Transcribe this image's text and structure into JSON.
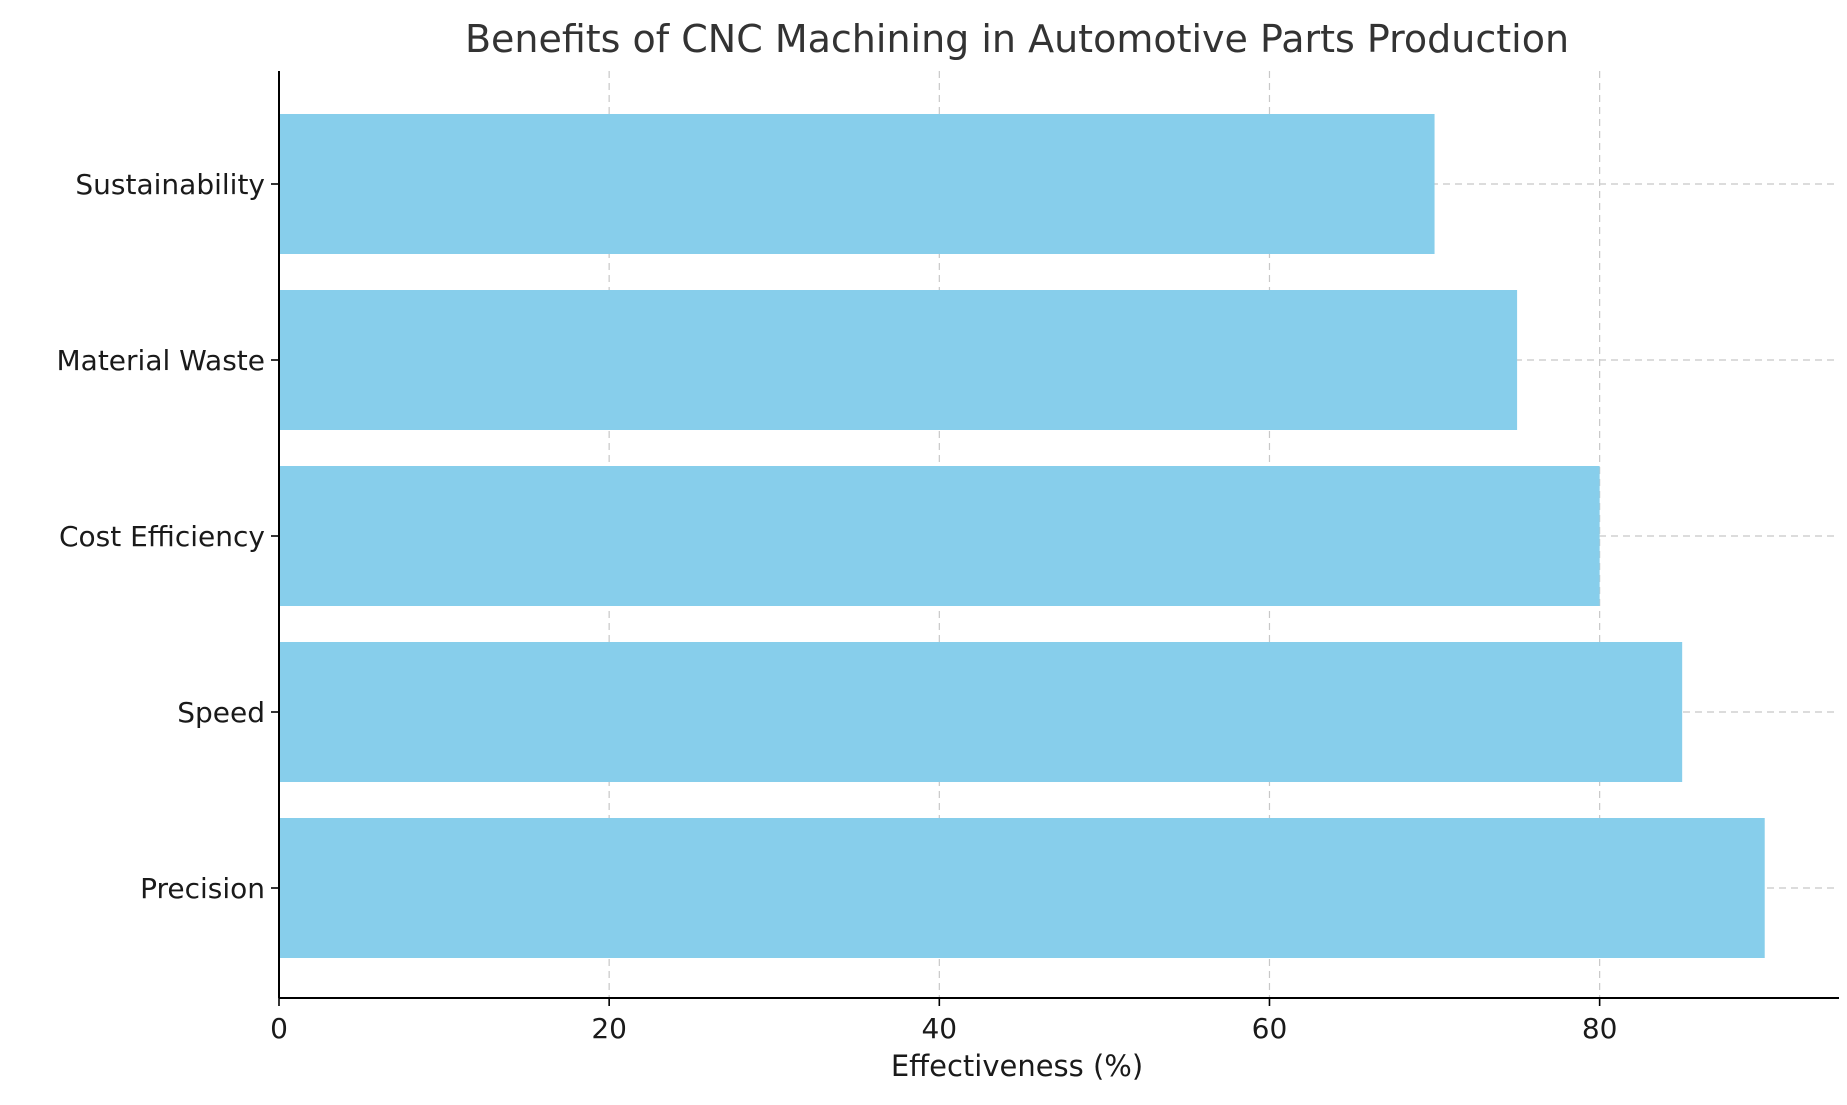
{
  "chart_data": {
    "type": "bar",
    "orientation": "horizontal",
    "title": "Benefits of CNC Machining in Automotive Parts Production",
    "xlabel": "Effectiveness (%)",
    "ylabel": "",
    "categories": [
      "Precision",
      "Speed",
      "Cost Efficiency",
      "Material Waste",
      "Sustainability"
    ],
    "values": [
      90,
      85,
      80,
      75,
      70
    ],
    "xlim": [
      0,
      94.5
    ],
    "xticks": [
      0,
      20,
      40,
      60,
      80
    ],
    "xtick_labels": [
      "0",
      "20",
      "40",
      "60",
      "80"
    ],
    "grid": true,
    "bar_color": "#87CEEB"
  }
}
